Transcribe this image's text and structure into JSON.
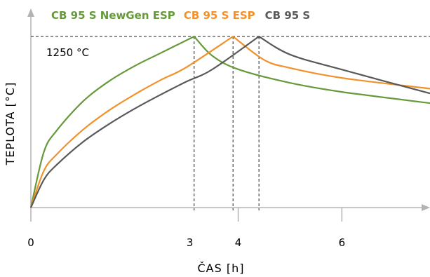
{
  "chart_data": {
    "type": "line",
    "title": "",
    "xlabel": "ČAS [h]",
    "ylabel": "TEPLOTA [°C]",
    "xlim": [
      0,
      7.7
    ],
    "x_ticks": [
      {
        "value": 0,
        "label": "0"
      },
      {
        "value": 4,
        "label": "4"
      },
      {
        "value": 6,
        "label": "6"
      }
    ],
    "annotation": {
      "label": "1250 °C",
      "y_value": 1250
    },
    "peak_labels": [
      {
        "value": 3.0,
        "label": "3"
      }
    ],
    "grid": false,
    "legend_position": "top",
    "series": [
      {
        "name": "CB 95 S NewGen ESP",
        "color": "#66993a",
        "peak_time": 3.15,
        "peak_temp": 1250,
        "x": [
          0,
          0.25,
          0.5,
          1.0,
          1.5,
          2.0,
          2.5,
          3.15,
          3.5,
          4.0,
          5.0,
          6.0,
          7.7
        ],
        "y": [
          0,
          405,
          563,
          774,
          921,
          1034,
          1128,
          1250,
          1109,
          1010,
          911,
          845,
          763
        ]
      },
      {
        "name": "CB 95 S ESP",
        "color": "#f2912c",
        "peak_time": 3.9,
        "peak_temp": 1250,
        "x": [
          0,
          0.25,
          0.5,
          1.0,
          1.5,
          2.0,
          2.5,
          3.0,
          3.9,
          4.5,
          5.0,
          6.0,
          7.7
        ],
        "y": [
          0,
          268,
          389,
          567,
          708,
          826,
          931,
          1025,
          1250,
          1079,
          1020,
          947,
          869
        ]
      },
      {
        "name": "CB 95 S",
        "color": "#595959",
        "peak_time": 4.4,
        "peak_temp": 1250,
        "x": [
          0,
          0.25,
          0.5,
          1.0,
          1.5,
          2.0,
          2.5,
          3.0,
          3.5,
          4.4,
          5.0,
          6.0,
          7.7
        ],
        "y": [
          0,
          203,
          313,
          478,
          608,
          722,
          824,
          920,
          1009,
          1250,
          1118,
          1008,
          834
        ]
      }
    ]
  }
}
